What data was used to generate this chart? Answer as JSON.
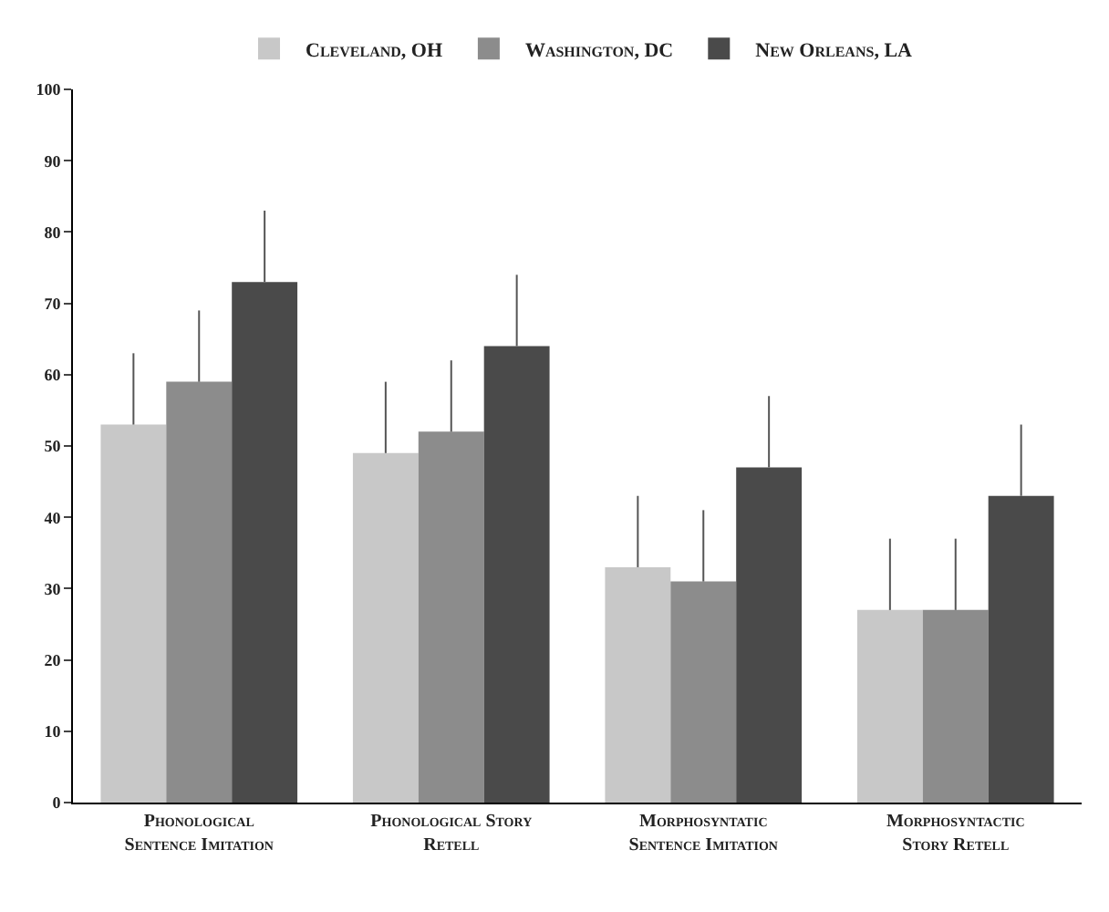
{
  "chart_data": {
    "type": "bar",
    "categories": [
      "Phonological Sentence Imitation",
      "Phonological Story Retell",
      "Morphosyntatic Sentence Imitation",
      "Morphosyntactic Story Retell"
    ],
    "series": [
      {
        "name": "Cleveland, OH",
        "color": "#c8c8c8",
        "values": [
          53,
          49,
          33,
          27
        ],
        "errors": [
          [
            53,
            63
          ],
          [
            49,
            59
          ],
          [
            33,
            43
          ],
          [
            27,
            37
          ]
        ]
      },
      {
        "name": "Washington, DC",
        "color": "#8c8c8c",
        "values": [
          59,
          52,
          31,
          27
        ],
        "errors": [
          [
            59,
            69
          ],
          [
            52,
            62
          ],
          [
            31,
            41
          ],
          [
            27,
            37
          ]
        ]
      },
      {
        "name": "New Orleans, LA",
        "color": "#4a4a4a",
        "values": [
          73,
          64,
          47,
          43
        ],
        "errors": [
          [
            73,
            83
          ],
          [
            64,
            74
          ],
          [
            47,
            57
          ],
          [
            43,
            53
          ]
        ]
      }
    ],
    "ylim": [
      0,
      100
    ],
    "yticks": [
      0,
      10,
      20,
      30,
      40,
      50,
      60,
      70,
      80,
      90,
      100
    ],
    "legend": "top"
  }
}
